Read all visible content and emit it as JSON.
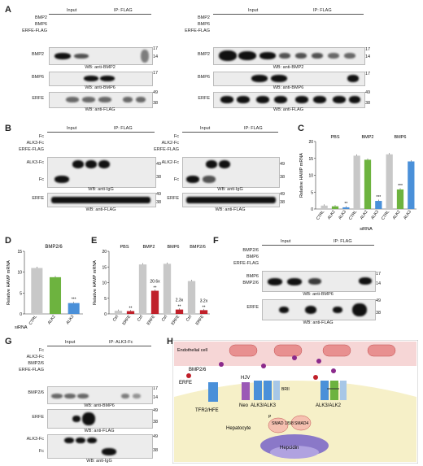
{
  "panels": [
    "A",
    "B",
    "C",
    "D",
    "E",
    "F",
    "G",
    "H"
  ],
  "common": {
    "input": "Input",
    "ip_flag": "IP: FLAG",
    "ip_alk3fc": "IP: ALK3-Fc",
    "plus": "+",
    "pp": "++",
    "ppp": "+++"
  },
  "A": {
    "rows": [
      "BMP2",
      "BMP6",
      "ERFE-FLAG"
    ],
    "blots": [
      "BMP2",
      "BMP6",
      "ERFE"
    ],
    "wb": [
      "WB: anti-BMP2",
      "WB: anti-BMP6",
      "WB: anti-FLAG"
    ],
    "mw": [
      "17",
      "14",
      "17",
      "49",
      "38"
    ]
  },
  "A2": {
    "rows": [
      "BMP2",
      "BMP6",
      "ERFE-FLAG"
    ],
    "mw": [
      "17",
      "14",
      "17",
      "49",
      "38"
    ]
  },
  "B": {
    "rows": [
      "Fc",
      "ALK3-Fc",
      "ERFE-FLAG"
    ],
    "blots": [
      "ALK3-Fc",
      "Fc",
      "ERFE"
    ],
    "wb": [
      "WB: anti-IgG",
      "WB: anti-FLAG"
    ],
    "mw": [
      "49",
      "38",
      "49",
      "38"
    ]
  },
  "B2": {
    "rows": [
      "Fc",
      "ALK2-Fc",
      "ERFE-FLAG"
    ],
    "blots": [
      "ALK2-Fc",
      "Fc",
      "ERFE"
    ]
  },
  "C": {
    "ylabel": "Relative HAMP mRNA",
    "groups": [
      "PBS",
      "BMP2",
      "BMP6"
    ],
    "sirna": [
      "CTRL",
      "ALK2",
      "ALK3",
      "CTRL",
      "ALK2",
      "ALK3",
      "CTRL",
      "ALK2",
      "ALK3"
    ],
    "xlabel": "siRNA",
    "yticks": [
      "0",
      "5",
      "10",
      "15",
      "20"
    ],
    "sig": [
      "**",
      "***",
      "***"
    ]
  },
  "chart_data": [
    {
      "type": "bar",
      "panel": "C",
      "categories": [
        "PBS CTRL",
        "PBS ALK2",
        "PBS ALK3",
        "BMP2 CTRL",
        "BMP2 ALK2",
        "BMP2 ALK3",
        "BMP6 CTRL",
        "BMP6 ALK2",
        "BMP6 ALK3"
      ],
      "values": [
        1,
        0.8,
        0.5,
        15.8,
        14.6,
        2.4,
        16.2,
        5.8,
        14.1
      ],
      "ylim": [
        0,
        20
      ],
      "ylabel": "Relative HAMP mRNA",
      "xlabel": "siRNA",
      "colors": [
        "#c8c8c8",
        "#6db33f",
        "#4a90d9",
        "#c8c8c8",
        "#6db33f",
        "#4a90d9",
        "#c8c8c8",
        "#6db33f",
        "#4a90d9"
      ]
    },
    {
      "type": "bar",
      "panel": "D",
      "categories": [
        "CTRL",
        "ALK2",
        "ALK3"
      ],
      "values": [
        11,
        8.8,
        2.6
      ],
      "ylim": [
        0,
        15
      ],
      "title": "BMP2/6",
      "ylabel": "Relative HAMP mRNA",
      "xlabel": "siRNA",
      "colors": [
        "#c8c8c8",
        "#6db33f",
        "#4a90d9"
      ]
    },
    {
      "type": "bar",
      "panel": "E",
      "categories": [
        "PBS Ctrl",
        "PBS ERFE",
        "BMP2 Ctrl",
        "BMP2 ERFE",
        "BMP6 Ctrl",
        "BMP6 ERFE",
        "BMP2/6 Ctrl",
        "BMP2/6 ERFE"
      ],
      "values": [
        1,
        0.9,
        15.8,
        7.4,
        16,
        1.4,
        10.5,
        1.2
      ],
      "ylim": [
        0,
        20
      ],
      "ylabel": "Relative HAMP mRNA",
      "colors": [
        "#c8c8c8",
        "#c0202a",
        "#c8c8c8",
        "#c0202a",
        "#c8c8c8",
        "#c0202a",
        "#c8c8c8",
        "#c0202a"
      ]
    }
  ],
  "D": {
    "title": "BMP2/6",
    "yticks": [
      "0",
      "5",
      "10",
      "15"
    ],
    "xlabel": "siRNA",
    "cats": [
      "CTRL",
      "ALK2",
      "ALK3"
    ],
    "sig": "***",
    "ylabel": "Relative HAMP mRNA"
  },
  "E": {
    "groups": [
      "PBS",
      "BMP2",
      "BMP6",
      "BMP2/6"
    ],
    "cats": [
      "Ctrl",
      "ERFE"
    ],
    "fold": [
      "20.6x",
      "2.3x",
      "3.2x"
    ],
    "sig": "**",
    "ylabel": "Relative HAMP mRNA",
    "yticks": [
      "0",
      "5",
      "10",
      "15",
      "20"
    ]
  },
  "F": {
    "rows": [
      "BMP2/6",
      "BMP6",
      "ERFE-FLAG"
    ],
    "blots": [
      "BMP6",
      "BMP2/6",
      "ERFE"
    ],
    "wb": [
      "WB: anti-BMP6",
      "WB: anti-FLAG"
    ],
    "mw": [
      "17",
      "14",
      "49",
      "38"
    ]
  },
  "G": {
    "rows": [
      "Fc",
      "ALK3-Fc",
      "BMP2/6",
      "ERFE-FLAG"
    ],
    "blots": [
      "BMP2/6",
      "ERFE",
      "ALK3-Fc",
      "Fc"
    ],
    "wb": [
      "WB: anti-BMP6",
      "WB: anti-FLAG",
      "WB: anti-IgG"
    ],
    "mw": [
      "17",
      "14",
      "49",
      "38",
      "49",
      "38"
    ]
  },
  "H": {
    "labels": [
      "Endothelial cell",
      "BMP2/6",
      "ERFE",
      "HJV",
      "Neo",
      "ALK3/ALK3",
      "ALK3/ALK2",
      "TFR2/HFE",
      "BRII",
      "Hepatocyte",
      "SMAD 1/5/8",
      "SMAD4",
      "Hepcidin",
      "P"
    ]
  }
}
